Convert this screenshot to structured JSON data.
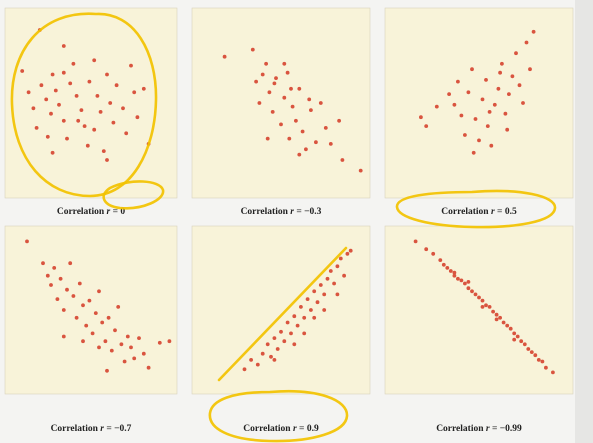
{
  "figure": {
    "background": "#f4f4f2",
    "panel_color": "#f8f3d9",
    "point_color": "#d9543f",
    "highlight_color": "#f2c200"
  },
  "chart_data": [
    {
      "type": "scatter",
      "caption": "Correlation r = 0",
      "caption_parts": {
        "prefix": "Correlation ",
        "var": "r",
        "rel": " = 0"
      },
      "xlim": [
        0,
        100
      ],
      "ylim": [
        0,
        100
      ],
      "points": [
        [
          18,
          91
        ],
        [
          33,
          82
        ],
        [
          7,
          68
        ],
        [
          11,
          56
        ],
        [
          14,
          47
        ],
        [
          16,
          36
        ],
        [
          19,
          60
        ],
        [
          22,
          52
        ],
        [
          25,
          44
        ],
        [
          23,
          31
        ],
        [
          26,
          66
        ],
        [
          28,
          57
        ],
        [
          30,
          49
        ],
        [
          33,
          40
        ],
        [
          35,
          30
        ],
        [
          37,
          61
        ],
        [
          39,
          72
        ],
        [
          41,
          54
        ],
        [
          44,
          46
        ],
        [
          46,
          37
        ],
        [
          48,
          26
        ],
        [
          49,
          62
        ],
        [
          52,
          74
        ],
        [
          54,
          54
        ],
        [
          56,
          45
        ],
        [
          58,
          23
        ],
        [
          60,
          66
        ],
        [
          62,
          50
        ],
        [
          64,
          39
        ],
        [
          66,
          60
        ],
        [
          70,
          47
        ],
        [
          72,
          33
        ],
        [
          75,
          71
        ],
        [
          77,
          56
        ],
        [
          79,
          42
        ],
        [
          83,
          58
        ],
        [
          86,
          27
        ],
        [
          60,
          18
        ],
        [
          26,
          22
        ],
        [
          52,
          35
        ],
        [
          42,
          40
        ],
        [
          33,
          67
        ]
      ]
    },
    {
      "type": "scatter",
      "caption": "Correlation r = −0.3",
      "caption_parts": {
        "prefix": "Correlation ",
        "var": "r",
        "rel": " = −0.3"
      },
      "xlim": [
        0,
        100
      ],
      "ylim": [
        0,
        100
      ],
      "points": [
        [
          16,
          76
        ],
        [
          33,
          80
        ],
        [
          35,
          62
        ],
        [
          37,
          50
        ],
        [
          41,
          72
        ],
        [
          43,
          56
        ],
        [
          45,
          45
        ],
        [
          47,
          64
        ],
        [
          50,
          38
        ],
        [
          52,
          53
        ],
        [
          54,
          67
        ],
        [
          55,
          30
        ],
        [
          57,
          48
        ],
        [
          59,
          40
        ],
        [
          61,
          58
        ],
        [
          63,
          34
        ],
        [
          65,
          24
        ],
        [
          68,
          46
        ],
        [
          71,
          28
        ],
        [
          74,
          50
        ],
        [
          77,
          36
        ],
        [
          80,
          27
        ],
        [
          85,
          40
        ],
        [
          87,
          18
        ],
        [
          98,
          12
        ],
        [
          52,
          72
        ],
        [
          46,
          61
        ],
        [
          61,
          21
        ],
        [
          39,
          66
        ],
        [
          56,
          58
        ],
        [
          67,
          52
        ],
        [
          42,
          30
        ]
      ]
    },
    {
      "type": "scatter",
      "caption": "Correlation r = 0.5",
      "caption_parts": {
        "prefix": "Correlation ",
        "var": "r",
        "rel": " = 0.5"
      },
      "xlim": [
        0,
        100
      ],
      "ylim": [
        0,
        100
      ],
      "points": [
        [
          17,
          42
        ],
        [
          20,
          37
        ],
        [
          26,
          48
        ],
        [
          33,
          55
        ],
        [
          36,
          49
        ],
        [
          38,
          62
        ],
        [
          40,
          43
        ],
        [
          42,
          32
        ],
        [
          44,
          56
        ],
        [
          46,
          69
        ],
        [
          48,
          41
        ],
        [
          50,
          29
        ],
        [
          52,
          52
        ],
        [
          54,
          63
        ],
        [
          55,
          37
        ],
        [
          57,
          26
        ],
        [
          59,
          49
        ],
        [
          61,
          58
        ],
        [
          63,
          72
        ],
        [
          65,
          44
        ],
        [
          67,
          55
        ],
        [
          69,
          65
        ],
        [
          71,
          78
        ],
        [
          73,
          60
        ],
        [
          75,
          50
        ],
        [
          77,
          84
        ],
        [
          79,
          69
        ],
        [
          81,
          90
        ],
        [
          66,
          35
        ],
        [
          56,
          45
        ],
        [
          47,
          22
        ],
        [
          62,
          67
        ]
      ]
    },
    {
      "type": "scatter",
      "caption": "Correlation r = −0.7",
      "caption_parts": {
        "prefix": "Correlation ",
        "var": "r",
        "rel": " = −0.7"
      },
      "xlim": [
        0,
        100
      ],
      "ylim": [
        0,
        100
      ],
      "points": [
        [
          10,
          94
        ],
        [
          20,
          80
        ],
        [
          23,
          72
        ],
        [
          25,
          66
        ],
        [
          27,
          77
        ],
        [
          29,
          57
        ],
        [
          31,
          70
        ],
        [
          33,
          50
        ],
        [
          35,
          63
        ],
        [
          37,
          80
        ],
        [
          39,
          59
        ],
        [
          41,
          45
        ],
        [
          43,
          67
        ],
        [
          45,
          53
        ],
        [
          47,
          40
        ],
        [
          49,
          56
        ],
        [
          51,
          35
        ],
        [
          53,
          48
        ],
        [
          55,
          62
        ],
        [
          57,
          42
        ],
        [
          59,
          30
        ],
        [
          61,
          45
        ],
        [
          63,
          24
        ],
        [
          65,
          37
        ],
        [
          67,
          52
        ],
        [
          69,
          28
        ],
        [
          71,
          17
        ],
        [
          73,
          33
        ],
        [
          75,
          26
        ],
        [
          77,
          19
        ],
        [
          80,
          32
        ],
        [
          83,
          22
        ],
        [
          86,
          13
        ],
        [
          93,
          29
        ],
        [
          99,
          30
        ],
        [
          45,
          30
        ],
        [
          55,
          26
        ],
        [
          60,
          11
        ],
        [
          33,
          33
        ]
      ]
    },
    {
      "type": "scatter",
      "caption": "Correlation r = 0.9",
      "caption_parts": {
        "prefix": "Correlation ",
        "var": "r",
        "rel": " = 0.9"
      },
      "xlim": [
        0,
        100
      ],
      "ylim": [
        0,
        100
      ],
      "points": [
        [
          28,
          12
        ],
        [
          32,
          18
        ],
        [
          36,
          15
        ],
        [
          39,
          22
        ],
        [
          42,
          28
        ],
        [
          44,
          20
        ],
        [
          46,
          32
        ],
        [
          48,
          25
        ],
        [
          50,
          36
        ],
        [
          52,
          30
        ],
        [
          54,
          42
        ],
        [
          56,
          35
        ],
        [
          58,
          46
        ],
        [
          60,
          40
        ],
        [
          62,
          52
        ],
        [
          64,
          45
        ],
        [
          66,
          57
        ],
        [
          68,
          50
        ],
        [
          70,
          62
        ],
        [
          72,
          55
        ],
        [
          74,
          66
        ],
        [
          76,
          60
        ],
        [
          78,
          70
        ],
        [
          80,
          75
        ],
        [
          82,
          67
        ],
        [
          84,
          78
        ],
        [
          86,
          83
        ],
        [
          88,
          72
        ],
        [
          90,
          86
        ],
        [
          92,
          88
        ],
        [
          58,
          28
        ],
        [
          64,
          35
        ],
        [
          70,
          45
        ],
        [
          46,
          18
        ],
        [
          76,
          50
        ],
        [
          84,
          60
        ]
      ]
    },
    {
      "type": "scatter",
      "caption": "Correlation r = −0.99",
      "caption_parts": {
        "prefix": "Correlation ",
        "var": "r",
        "rel": " = −0.99"
      },
      "xlim": [
        0,
        100
      ],
      "ylim": [
        0,
        100
      ],
      "points": [
        [
          14,
          94
        ],
        [
          20,
          89
        ],
        [
          24,
          86
        ],
        [
          28,
          82
        ],
        [
          30,
          79
        ],
        [
          32,
          77
        ],
        [
          34,
          75
        ],
        [
          36,
          72
        ],
        [
          38,
          70
        ],
        [
          40,
          69
        ],
        [
          42,
          67
        ],
        [
          44,
          64
        ],
        [
          46,
          62
        ],
        [
          48,
          60
        ],
        [
          50,
          58
        ],
        [
          52,
          56
        ],
        [
          54,
          53
        ],
        [
          56,
          52
        ],
        [
          58,
          49
        ],
        [
          60,
          47
        ],
        [
          62,
          45
        ],
        [
          64,
          42
        ],
        [
          66,
          40
        ],
        [
          68,
          38
        ],
        [
          70,
          35
        ],
        [
          72,
          33
        ],
        [
          74,
          30
        ],
        [
          76,
          28
        ],
        [
          78,
          25
        ],
        [
          80,
          23
        ],
        [
          82,
          21
        ],
        [
          84,
          18
        ],
        [
          86,
          17
        ],
        [
          88,
          13
        ],
        [
          92,
          10
        ],
        [
          44,
          68
        ],
        [
          52,
          52
        ],
        [
          60,
          44
        ],
        [
          70,
          31
        ],
        [
          36,
          74
        ]
      ]
    }
  ]
}
